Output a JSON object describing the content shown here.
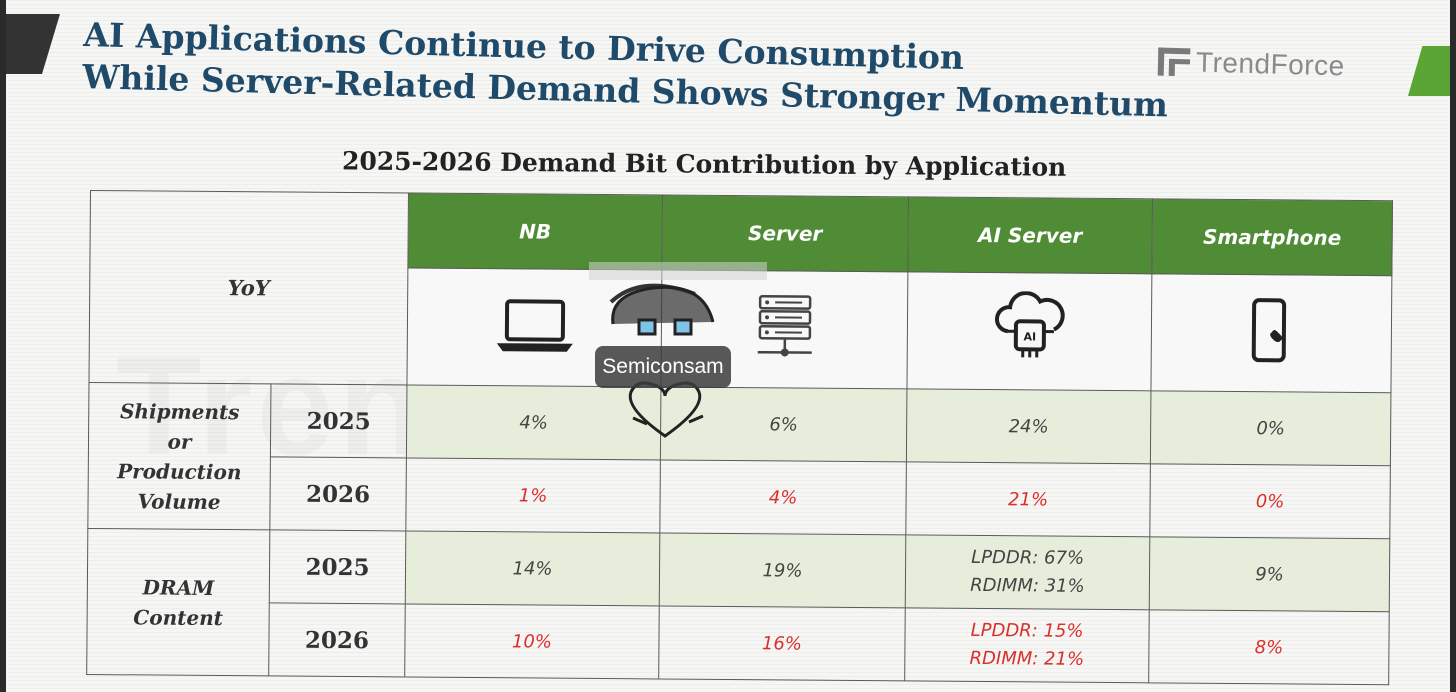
{
  "title": {
    "line1": "AI Applications Continue to Drive Consumption",
    "line2": "While Server-Related Demand Shows Stronger Momentum"
  },
  "logo": {
    "text": "TrendForce",
    "icon": "trendforce-logo-icon"
  },
  "watermark": {
    "text": "TrendForce"
  },
  "stamp": {
    "label": "Semiconsam"
  },
  "subtitle": "2025-2026 Demand Bit Contribution by Application",
  "table": {
    "corner_label": "YoY",
    "columns": [
      {
        "label": "NB",
        "icon": "laptop-icon"
      },
      {
        "label": "Server",
        "icon": "server-rack-icon"
      },
      {
        "label": "AI Server",
        "icon": "ai-cloud-chip-icon"
      },
      {
        "label": "Smartphone",
        "icon": "smartphone-icon"
      }
    ],
    "groups": [
      {
        "label_lines": [
          "Shipments",
          "or",
          "Production",
          "Volume"
        ],
        "rows": [
          {
            "year": "2025",
            "values": [
              "4%",
              "6%",
              "24%",
              "0%"
            ]
          },
          {
            "year": "2026",
            "values": [
              "1%",
              "4%",
              "21%",
              "0%"
            ]
          }
        ]
      },
      {
        "label_lines": [
          "DRAM",
          "Content"
        ],
        "rows": [
          {
            "year": "2025",
            "values": [
              "14%",
              "19%",
              [
                "LPDDR: 67%",
                "RDIMM: 31%"
              ],
              "9%"
            ]
          },
          {
            "year": "2026",
            "values": [
              "10%",
              "16%",
              [
                "LPDDR: 15%",
                "RDIMM: 21%"
              ],
              "8%"
            ]
          }
        ]
      }
    ]
  },
  "colors": {
    "header_green": "#4f8c35",
    "title_blue": "#1f4a6a",
    "forecast_red": "#d9302c",
    "highlight_green": "#e6eedb"
  }
}
